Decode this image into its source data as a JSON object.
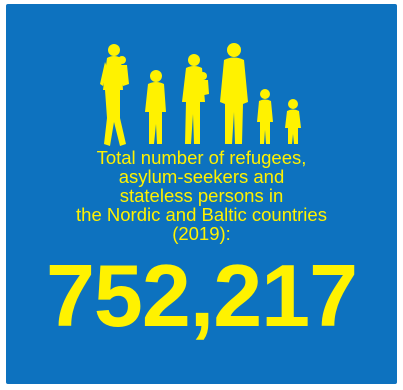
{
  "infographic": {
    "caption_lines": [
      "Total number of refugees,",
      "asylum-seekers and",
      "stateless persons in",
      "the Nordic and Baltic countries",
      "(2019):"
    ],
    "total_value": "752,217",
    "icon": "family-silhouettes-icon",
    "colors": {
      "background": "#0d72bf",
      "accent": "#fff200"
    }
  }
}
